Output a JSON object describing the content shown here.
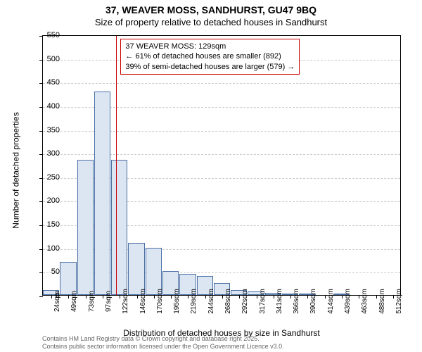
{
  "chart": {
    "type": "histogram",
    "title_main": "37, WEAVER MOSS, SANDHURST, GU47 9BQ",
    "title_sub": "Size of property relative to detached houses in Sandhurst",
    "y_label": "Number of detached properties",
    "x_label": "Distribution of detached houses by size in Sandhurst",
    "ylim": [
      0,
      550
    ],
    "ytick_step": 50,
    "yticks": [
      0,
      50,
      100,
      150,
      200,
      250,
      300,
      350,
      400,
      450,
      500,
      550
    ],
    "x_categories": [
      "24sqm",
      "49sqm",
      "73sqm",
      "97sqm",
      "122sqm",
      "146sqm",
      "170sqm",
      "195sqm",
      "219sqm",
      "244sqm",
      "268sqm",
      "292sqm",
      "317sqm",
      "341sqm",
      "366sqm",
      "390sqm",
      "414sqm",
      "439sqm",
      "463sqm",
      "488sqm",
      "512sqm"
    ],
    "values": [
      10,
      70,
      285,
      430,
      285,
      110,
      100,
      50,
      45,
      40,
      25,
      10,
      8,
      5,
      3,
      2,
      0,
      2,
      0,
      0,
      0
    ],
    "bar_fill": "#dce6f2",
    "bar_border": "#4a6fa5",
    "grid_color": "#cccccc",
    "background": "#ffffff",
    "ref_line_index": 4.3,
    "ref_line_color": "#cc0000",
    "annotation": {
      "line1": "37 WEAVER MOSS: 129sqm",
      "line2": "← 61% of detached houses are smaller (892)",
      "line3": "39% of semi-detached houses are larger (579) →",
      "border_color": "#cc0000"
    },
    "attribution_line1": "Contains HM Land Registry data © Crown copyright and database right 2025.",
    "attribution_line2": "Contains public sector information licensed under the Open Government Licence v3.0."
  }
}
